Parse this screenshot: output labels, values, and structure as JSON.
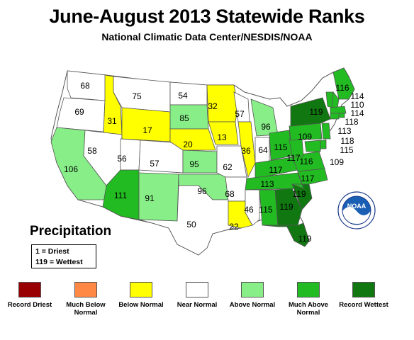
{
  "title": "June-August 2013 Statewide Ranks",
  "subtitle": "National Climatic Data Center/NESDIS/NOAA",
  "map_label": "Precipitation",
  "key": {
    "line1": "1 = Driest",
    "line2": "119 = Wettest"
  },
  "legend": [
    {
      "label": "Record Driest",
      "color": "#990000"
    },
    {
      "label": "Much Below Normal",
      "color": "#ff8844"
    },
    {
      "label": "Below Normal",
      "color": "#ffff00"
    },
    {
      "label": "Near Normal",
      "color": "#ffffff"
    },
    {
      "label": "Above Normal",
      "color": "#88ee88"
    },
    {
      "label": "Much Above Normal",
      "color": "#22bb22"
    },
    {
      "label": "Record Wettest",
      "color": "#117711"
    }
  ],
  "logo_text": "NOAA",
  "states": [
    {
      "state": "WA",
      "rank": "68",
      "category": "Near Normal"
    },
    {
      "state": "OR",
      "rank": "69",
      "category": "Near Normal"
    },
    {
      "state": "CA",
      "rank": "106",
      "category": "Above Normal"
    },
    {
      "state": "ID",
      "rank": "31",
      "category": "Below Normal"
    },
    {
      "state": "NV",
      "rank": "58",
      "category": "Near Normal"
    },
    {
      "state": "MT",
      "rank": "75",
      "category": "Near Normal"
    },
    {
      "state": "WY",
      "rank": "17",
      "category": "Below Normal"
    },
    {
      "state": "UT",
      "rank": "56",
      "category": "Near Normal"
    },
    {
      "state": "AZ",
      "rank": "111",
      "category": "Much Above Normal"
    },
    {
      "state": "CO",
      "rank": "57",
      "category": "Near Normal"
    },
    {
      "state": "NM",
      "rank": "91",
      "category": "Above Normal"
    },
    {
      "state": "ND",
      "rank": "54",
      "category": "Near Normal"
    },
    {
      "state": "SD",
      "rank": "85",
      "category": "Above Normal"
    },
    {
      "state": "NE",
      "rank": "20",
      "category": "Below Normal"
    },
    {
      "state": "KS",
      "rank": "95",
      "category": "Above Normal"
    },
    {
      "state": "OK",
      "rank": "96",
      "category": "Above Normal"
    },
    {
      "state": "TX",
      "rank": "50",
      "category": "Near Normal"
    },
    {
      "state": "MN",
      "rank": "32",
      "category": "Below Normal"
    },
    {
      "state": "IA",
      "rank": "13",
      "category": "Below Normal"
    },
    {
      "state": "MO",
      "rank": "62",
      "category": "Near Normal"
    },
    {
      "state": "AR",
      "rank": "68",
      "category": "Near Normal"
    },
    {
      "state": "LA",
      "rank": "22",
      "category": "Below Normal"
    },
    {
      "state": "WI",
      "rank": "57",
      "category": "Near Normal"
    },
    {
      "state": "IL",
      "rank": "36",
      "category": "Below Normal"
    },
    {
      "state": "MI",
      "rank": "96",
      "category": "Above Normal"
    },
    {
      "state": "IN",
      "rank": "64",
      "category": "Near Normal"
    },
    {
      "state": "OH",
      "rank": "115",
      "category": "Much Above Normal"
    },
    {
      "state": "KY",
      "rank": "117",
      "category": "Much Above Normal"
    },
    {
      "state": "TN",
      "rank": "113",
      "category": "Much Above Normal"
    },
    {
      "state": "MS",
      "rank": "46",
      "category": "Near Normal"
    },
    {
      "state": "AL",
      "rank": "115",
      "category": "Much Above Normal"
    },
    {
      "state": "GA",
      "rank": "119",
      "category": "Record Wettest"
    },
    {
      "state": "FL",
      "rank": "119",
      "category": "Record Wettest"
    },
    {
      "state": "SC",
      "rank": "119",
      "category": "Record Wettest"
    },
    {
      "state": "NC",
      "rank": "117",
      "category": "Much Above Normal"
    },
    {
      "state": "VA",
      "rank": "116",
      "category": "Much Above Normal"
    },
    {
      "state": "WV",
      "rank": "117",
      "category": "Much Above Normal"
    },
    {
      "state": "PA",
      "rank": "109",
      "category": "Much Above Normal"
    },
    {
      "state": "NY",
      "rank": "119",
      "category": "Record Wettest"
    },
    {
      "state": "ME",
      "rank": "116",
      "category": "Much Above Normal"
    },
    {
      "state": "NH",
      "rank": "114",
      "category": "Much Above Normal"
    },
    {
      "state": "VT",
      "rank": "110",
      "category": "Much Above Normal"
    },
    {
      "state": "MA",
      "rank": "114",
      "category": "Much Above Normal"
    },
    {
      "state": "RI",
      "rank": "118",
      "category": "Much Above Normal"
    },
    {
      "state": "CT",
      "rank": "113",
      "category": "Much Above Normal"
    },
    {
      "state": "NJ",
      "rank": "118",
      "category": "Much Above Normal"
    },
    {
      "state": "DE",
      "rank": "115",
      "category": "Much Above Normal"
    },
    {
      "state": "MD",
      "rank": "109",
      "category": "Much Above Normal"
    }
  ]
}
